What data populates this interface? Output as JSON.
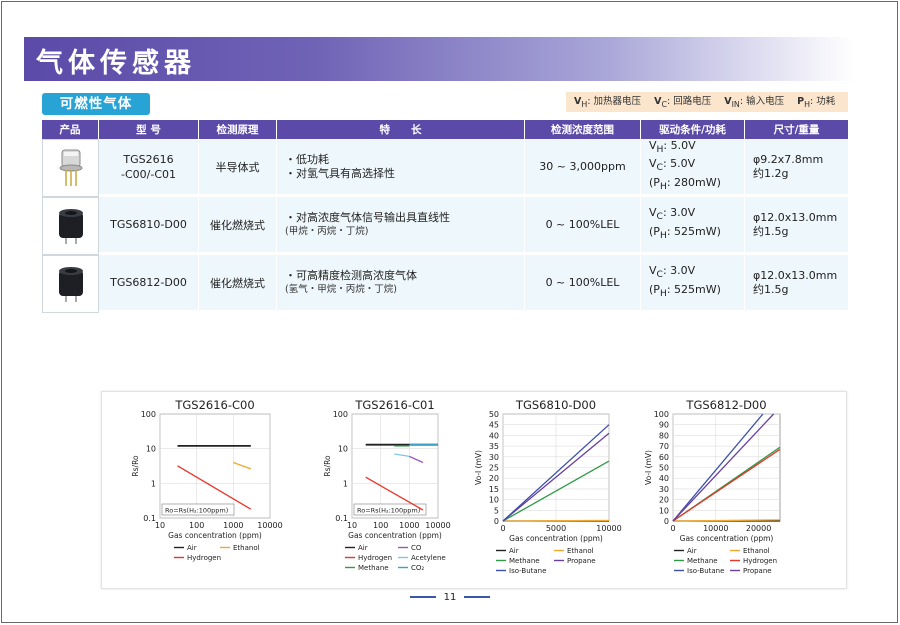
{
  "header": {
    "title": "气体传感器"
  },
  "section": {
    "label": "可燃性气体"
  },
  "legend": [
    {
      "sym": "V",
      "sub": "H",
      "text": ": 加热器电压"
    },
    {
      "sym": "V",
      "sub": "C",
      "text": ": 回路电压"
    },
    {
      "sym": "V",
      "sub": "IN",
      "text": ": 输入电压"
    },
    {
      "sym": "P",
      "sub": "H",
      "text": ": 功耗"
    }
  ],
  "table": {
    "headers": [
      "产品",
      "型 号",
      "检测原理",
      "特　　长",
      "检测浓度范围",
      "驱动条件/功耗",
      "尺寸/重量"
    ],
    "rows": [
      {
        "model_l1": "TGS2616",
        "model_l2": "-C00/-C01",
        "principle": "半导体式",
        "feat1": "・低功耗",
        "feat2": "・对氢气具有高选择性",
        "range": "30 ~ 3,000ppm",
        "d1": "V",
        "d1s": "H",
        "d1v": ": 5.0V",
        "d2": "V",
        "d2s": "C",
        "d2v": ": 5.0V",
        "d3": "(P",
        "d3s": "H",
        "d3v": ": 280mW)",
        "size1": "φ9.2x7.8mm",
        "size2": "约1.2g"
      },
      {
        "model_l1": "TGS6810-D00",
        "model_l2": "",
        "principle": "催化燃烧式",
        "feat1": "・对高浓度气体信号输出具直线性",
        "feat2": "(甲烷・丙烷・丁烷)",
        "range": "0 ~ 100%LEL",
        "d1": "V",
        "d1s": "C",
        "d1v": ": 3.0V",
        "d2": "(P",
        "d2s": "H",
        "d2v": ": 525mW)",
        "size1": "φ12.0x13.0mm",
        "size2": "约1.5g"
      },
      {
        "model_l1": "TGS6812-D00",
        "model_l2": "",
        "principle": "催化燃烧式",
        "feat1": "・可高精度检测高浓度气体",
        "feat2": "(氢气・甲烷・丙烷・丁烷)",
        "range": "0 ~ 100%LEL",
        "d1": "V",
        "d1s": "C",
        "d1v": ": 3.0V",
        "d2": "(P",
        "d2s": "H",
        "d2v": ": 525mW)",
        "size1": "φ12.0x13.0mm",
        "size2": "约1.5g"
      }
    ]
  },
  "colors": {
    "air": "#222222",
    "ethanol": "#f0a830",
    "hydrogen": "#e8352a",
    "co": "#9b59b6",
    "acetylene": "#7ec8e3",
    "methane": "#2e9a47",
    "co2": "#3aa0c8",
    "propane": "#6a3fa0",
    "isobutane": "#3b4fa8"
  },
  "chart_data": [
    {
      "type": "line",
      "title": "TGS2616-C00",
      "xscale": "log",
      "yscale": "log",
      "xlim": [
        10,
        10000
      ],
      "ylim": [
        0.1,
        100
      ],
      "xticks": [
        "10",
        "100",
        "1000",
        "10000"
      ],
      "yticks": [
        "0.1",
        "1",
        "10",
        "100"
      ],
      "xlabel": "Gas concentration (ppm)",
      "ylabel": "Rs/Ro",
      "annotation": "Ro=Rs(H₂:100ppm)",
      "series": [
        {
          "name": "Air",
          "color": "#222222",
          "x": [
            30,
            3000
          ],
          "y": [
            12,
            12
          ]
        },
        {
          "name": "Ethanol",
          "color": "#f0a830",
          "x": [
            1000,
            3000
          ],
          "y": [
            4,
            2.6
          ]
        },
        {
          "name": "Hydrogen",
          "color": "#e8352a",
          "x": [
            30,
            3000
          ],
          "y": [
            3.2,
            0.18
          ]
        }
      ]
    },
    {
      "type": "line",
      "title": "TGS2616-C01",
      "xscale": "log",
      "yscale": "log",
      "xlim": [
        10,
        10000
      ],
      "ylim": [
        0.1,
        100
      ],
      "xticks": [
        "10",
        "100",
        "1000",
        "10000"
      ],
      "yticks": [
        "0.1",
        "1",
        "10",
        "100"
      ],
      "xlabel": "Gas concentration (ppm)",
      "ylabel": "Rs/Ro",
      "annotation": "Ro=Rs(H₂:100ppm)",
      "series": [
        {
          "name": "Air",
          "color": "#222222",
          "x": [
            30,
            10000
          ],
          "y": [
            13,
            13
          ]
        },
        {
          "name": "CO",
          "color": "#9b59b6",
          "x": [
            1000,
            3000
          ],
          "y": [
            6,
            4
          ]
        },
        {
          "name": "Hydrogen",
          "color": "#e8352a",
          "x": [
            30,
            3000
          ],
          "y": [
            1.5,
            0.17
          ]
        },
        {
          "name": "Acetylene",
          "color": "#7ec8e3",
          "x": [
            300,
            1000
          ],
          "y": [
            7,
            6
          ]
        },
        {
          "name": "Methane",
          "color": "#2e9a47",
          "x": [
            300,
            1000
          ],
          "y": [
            12,
            12
          ]
        },
        {
          "name": "CO₂",
          "color": "#3aa0c8",
          "x": [
            1000,
            10000
          ],
          "y": [
            13,
            13
          ]
        }
      ]
    },
    {
      "type": "line",
      "title": "TGS6810-D00",
      "xscale": "linear",
      "yscale": "linear",
      "xlim": [
        0,
        10000
      ],
      "ylim": [
        0,
        50
      ],
      "xticks": [
        "0",
        "5000",
        "10000"
      ],
      "yticks": [
        "0",
        "5",
        "10",
        "15",
        "20",
        "25",
        "30",
        "35",
        "40",
        "45",
        "50"
      ],
      "xlabel": "Gas concentration (ppm)",
      "ylabel": "Vo-I (mV)",
      "series": [
        {
          "name": "Air",
          "color": "#222222",
          "x": [
            0,
            10000
          ],
          "y": [
            0,
            0
          ]
        },
        {
          "name": "Ethanol",
          "color": "#f0a830",
          "x": [
            0,
            10000
          ],
          "y": [
            0,
            0.3
          ]
        },
        {
          "name": "Methane",
          "color": "#2e9a47",
          "x": [
            0,
            10000
          ],
          "y": [
            0,
            28
          ]
        },
        {
          "name": "Propane",
          "color": "#6a3fa0",
          "x": [
            0,
            10000
          ],
          "y": [
            0,
            41
          ]
        },
        {
          "name": "Iso-Butane",
          "color": "#3b4fa8",
          "x": [
            0,
            10000
          ],
          "y": [
            0,
            45
          ]
        }
      ]
    },
    {
      "type": "line",
      "title": "TGS6812-D00",
      "xscale": "linear",
      "yscale": "linear",
      "xlim": [
        0,
        25000
      ],
      "ylim": [
        0,
        100
      ],
      "xticks": [
        "0",
        "10000",
        "20000"
      ],
      "yticks": [
        "0",
        "10",
        "20",
        "30",
        "40",
        "50",
        "60",
        "70",
        "80",
        "90",
        "100"
      ],
      "xlabel": "Gas concentration (ppm)",
      "ylabel": "Vo-I (mV)",
      "series": [
        {
          "name": "Air",
          "color": "#222222",
          "x": [
            0,
            25000
          ],
          "y": [
            0,
            0
          ]
        },
        {
          "name": "Ethanol",
          "color": "#f0a830",
          "x": [
            0,
            25000
          ],
          "y": [
            0,
            1
          ]
        },
        {
          "name": "Methane",
          "color": "#2e9a47",
          "x": [
            0,
            25000
          ],
          "y": [
            0,
            69
          ]
        },
        {
          "name": "Hydrogen",
          "color": "#e8352a",
          "x": [
            0,
            25000
          ],
          "y": [
            0,
            67
          ]
        },
        {
          "name": "Iso-Butane",
          "color": "#3b4fa8",
          "x": [
            0,
            21000
          ],
          "y": [
            0,
            100
          ]
        },
        {
          "name": "Propane",
          "color": "#6a3fa0",
          "x": [
            0,
            23500
          ],
          "y": [
            0,
            100
          ]
        }
      ]
    }
  ],
  "page": {
    "number": "11"
  }
}
